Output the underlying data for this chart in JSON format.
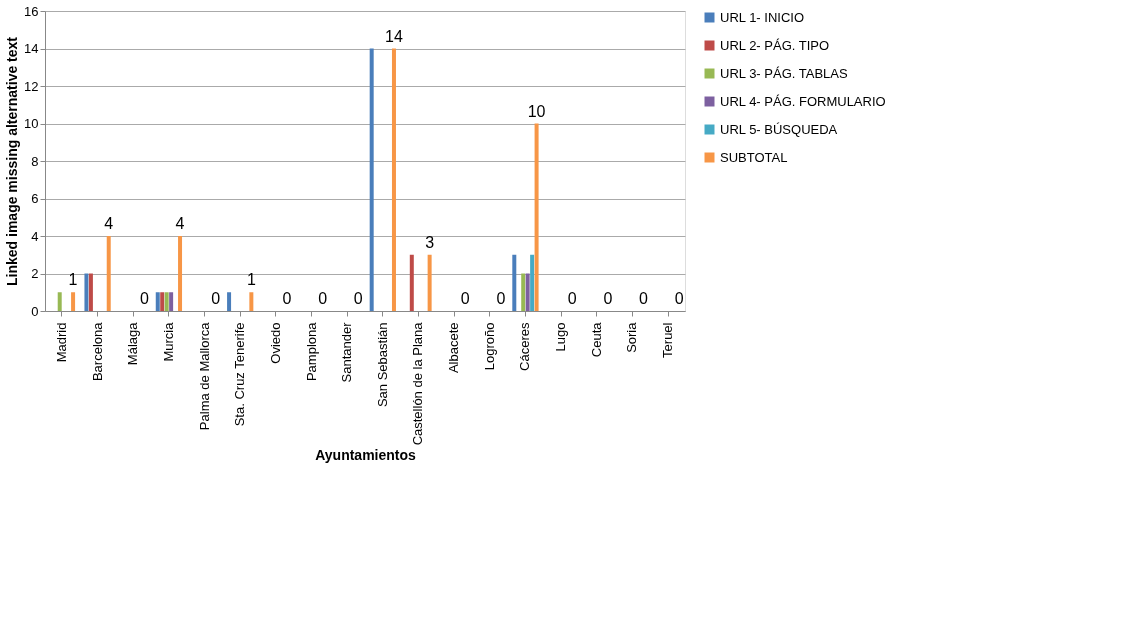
{
  "chart_data": {
    "type": "bar",
    "xlabel": "Ayuntamientos",
    "ylabel": "Linked image missing alternative text",
    "categories": [
      "Madrid",
      "Barcelona",
      "Málaga",
      "Murcia",
      "Palma de Mallorca",
      "Sta. Cruz Tenerife",
      "Oviedo",
      "Pamplona",
      "Santander",
      "San Sebastián",
      "Castellón de la Plana",
      "Albacete",
      "Logroño",
      "Cáceres",
      "Lugo",
      "Ceuta",
      "Soria",
      "Teruel"
    ],
    "series": [
      {
        "name": "URL 1- INICIO",
        "color": "#4a7ebb",
        "values": [
          0,
          2,
          0,
          1,
          0,
          1,
          0,
          0,
          0,
          14,
          0,
          0,
          0,
          3,
          0,
          0,
          0,
          0
        ]
      },
      {
        "name": "URL 2- PÁG. TIPO",
        "color": "#be4b48",
        "values": [
          0,
          2,
          0,
          1,
          0,
          0,
          0,
          0,
          0,
          0,
          3,
          0,
          0,
          0,
          0,
          0,
          0,
          0
        ]
      },
      {
        "name": "URL 3- PÁG. TABLAS",
        "color": "#98b954",
        "values": [
          1,
          0,
          0,
          1,
          0,
          0,
          0,
          0,
          0,
          0,
          0,
          0,
          0,
          2,
          0,
          0,
          0,
          0
        ]
      },
      {
        "name": "URL 4- PÁG. FORMULARIO",
        "color": "#7d60a0",
        "values": [
          0,
          0,
          0,
          1,
          0,
          0,
          0,
          0,
          0,
          0,
          0,
          0,
          0,
          2,
          0,
          0,
          0,
          0
        ]
      },
      {
        "name": "URL 5- BÚSQUEDA",
        "color": "#46aac5",
        "values": [
          0,
          0,
          0,
          0,
          0,
          0,
          0,
          0,
          0,
          0,
          0,
          0,
          0,
          3,
          0,
          0,
          0,
          0
        ]
      },
      {
        "name": "SUBTOTAL",
        "color": "#f79646",
        "values": [
          1,
          4,
          0,
          4,
          0,
          1,
          0,
          0,
          0,
          14,
          3,
          0,
          0,
          10,
          0,
          0,
          0,
          0
        ],
        "value_labels": [
          "1",
          "4",
          "0",
          "4",
          "0",
          "1",
          "0",
          "0",
          "0",
          "14",
          "3",
          "0",
          "0",
          "10",
          "0",
          "0",
          "0",
          "0"
        ]
      }
    ],
    "ylim": [
      0,
      16
    ],
    "yticks": [
      0,
      2,
      4,
      6,
      8,
      10,
      12,
      14,
      16
    ],
    "grid": "y",
    "legend": "right"
  }
}
